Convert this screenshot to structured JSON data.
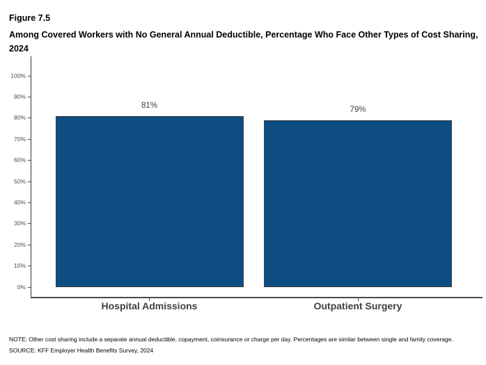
{
  "figure": {
    "label": "Figure 7.5",
    "title": "Among Covered Workers with No General Annual Deductible, Percentage Who Face Other Types of Cost Sharing, 2024"
  },
  "chart_data": {
    "type": "bar",
    "categories": [
      "Hospital Admissions",
      "Outpatient Surgery"
    ],
    "values": [
      81,
      79
    ],
    "value_labels": [
      "81%",
      "79%"
    ],
    "title": "Among Covered Workers with No General Annual Deductible, Percentage Who Face Other Types of Cost Sharing, 2024",
    "xlabel": "",
    "ylabel": "",
    "ylim": [
      0,
      100
    ],
    "yticks": [
      0,
      10,
      20,
      30,
      40,
      50,
      60,
      70,
      80,
      90,
      100
    ],
    "ytick_labels": [
      "0%",
      "10%",
      "20%",
      "30%",
      "40%",
      "50%",
      "60%",
      "70%",
      "80%",
      "90%",
      "100%"
    ],
    "grid": false,
    "legend": "none",
    "bar_color": "#0E4D84",
    "bar_border_color": "#3D3D3D"
  },
  "footer": {
    "note": "NOTE: Other cost sharing include a separate annual deductible, copayment, coinsurance or charge per day. Percentages are similar between single and family coverage.",
    "source": "SOURCE: KFF Employer Health Benefits Survey, 2024"
  }
}
